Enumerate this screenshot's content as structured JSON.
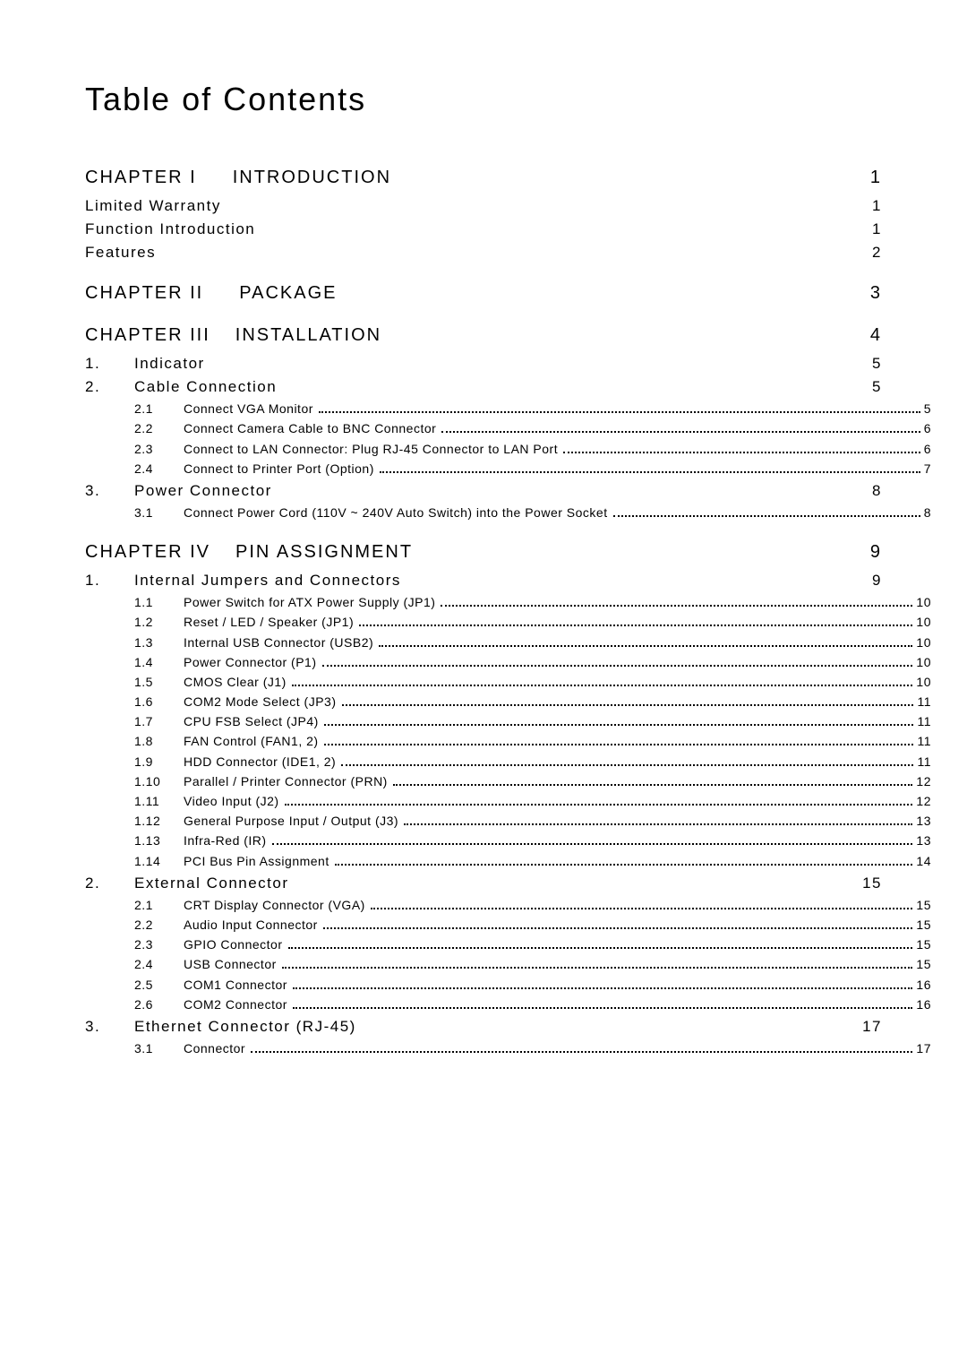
{
  "title": "Table of Contents",
  "toc": [
    {
      "kind": "chapter",
      "label": "CHAPTER I",
      "title": "INTRODUCTION",
      "page": "1",
      "wide": false
    },
    {
      "kind": "heading",
      "title": "Limited Warranty",
      "page": "1"
    },
    {
      "kind": "heading",
      "title": "Function Introduction",
      "page": "1"
    },
    {
      "kind": "heading",
      "title": "Features",
      "page": "2"
    },
    {
      "kind": "chapter",
      "label": "CHAPTER II",
      "title": "PACKAGE",
      "page": "3",
      "wide": false
    },
    {
      "kind": "chapter",
      "label": "CHAPTER III",
      "title": "INSTALLATION",
      "page": "4",
      "wide": true
    },
    {
      "kind": "section",
      "num": "1.",
      "title": "Indicator",
      "page": "5"
    },
    {
      "kind": "section",
      "num": "2.",
      "title": "Cable Connection",
      "page": "5"
    },
    {
      "kind": "sub",
      "num": "2.1",
      "title": "Connect VGA Monitor ",
      "page": " 5"
    },
    {
      "kind": "sub",
      "num": "2.2",
      "title": "Connect Camera Cable to BNC Connector ",
      "page": " 6"
    },
    {
      "kind": "sub",
      "num": "2.3",
      "title": "Connect to LAN Connector: Plug RJ-45 Connector to LAN Port",
      "page": " 6"
    },
    {
      "kind": "sub",
      "num": "2.4",
      "title": "Connect to Printer Port (Option) ",
      "page": " 7"
    },
    {
      "kind": "section",
      "num": "3.",
      "title": "Power Connector",
      "page": "8"
    },
    {
      "kind": "sub",
      "num": "3.1",
      "title": "Connect Power Cord (110V ~ 240V Auto Switch) into the Power Socket ",
      "page": " 8"
    },
    {
      "kind": "chapter",
      "label": "CHAPTER IV",
      "title": "PIN ASSIGNMENT",
      "page": "9",
      "wide": true
    },
    {
      "kind": "section",
      "num": "1.",
      "title": "Internal Jumpers and Connectors",
      "page": "9"
    },
    {
      "kind": "sub",
      "num": "1.1",
      "title": "Power Switch for ATX Power Supply (JP1) ",
      "page": "10"
    },
    {
      "kind": "sub",
      "num": "1.2",
      "title": "Reset / LED / Speaker (JP1) ",
      "page": "10"
    },
    {
      "kind": "sub",
      "num": "1.3",
      "title": "Internal USB Connector (USB2) ",
      "page": "10"
    },
    {
      "kind": "sub",
      "num": "1.4",
      "title": "Power Connector (P1)",
      "page": "10"
    },
    {
      "kind": "sub",
      "num": "1.5",
      "title": "CMOS Clear (J1) ",
      "page": "10"
    },
    {
      "kind": "sub",
      "num": "1.6",
      "title": "COM2 Mode Select (JP3) ",
      "page": "11"
    },
    {
      "kind": "sub",
      "num": "1.7",
      "title": "CPU FSB Select (JP4) ",
      "page": "11"
    },
    {
      "kind": "sub",
      "num": "1.8",
      "title": "FAN Control (FAN1, 2) ",
      "page": "11"
    },
    {
      "kind": "sub",
      "num": "1.9",
      "title": "HDD Connector (IDE1, 2)",
      "page": "11"
    },
    {
      "kind": "sub",
      "num": "1.10",
      "title": "Parallel / Printer Connector (PRN)",
      "page": "12"
    },
    {
      "kind": "sub",
      "num": "1.11",
      "title": "Video Input (J2) ",
      "page": "12"
    },
    {
      "kind": "sub",
      "num": "1.12",
      "title": "General Purpose Input / Output (J3) ",
      "page": "13"
    },
    {
      "kind": "sub",
      "num": "1.13",
      "title": "Infra-Red (IR) ",
      "page": "13"
    },
    {
      "kind": "sub",
      "num": "1.14",
      "title": "PCI Bus Pin Assignment ",
      "page": "14"
    },
    {
      "kind": "section",
      "num": "2.",
      "title": "External Connector",
      "page": "15"
    },
    {
      "kind": "sub",
      "num": "2.1",
      "title": "CRT Display Connector (VGA) ",
      "page": "15"
    },
    {
      "kind": "sub",
      "num": "2.2",
      "title": "Audio Input Connector",
      "page": "15"
    },
    {
      "kind": "sub",
      "num": "2.3",
      "title": "GPIO Connector",
      "page": "15"
    },
    {
      "kind": "sub",
      "num": "2.4",
      "title": "USB Connector ",
      "page": "15"
    },
    {
      "kind": "sub",
      "num": "2.5",
      "title": "COM1 Connector",
      "page": "16"
    },
    {
      "kind": "sub",
      "num": "2.6",
      "title": "COM2 Connector",
      "page": "16"
    },
    {
      "kind": "section",
      "num": "3.",
      "title": "Ethernet Connector (RJ-45)",
      "page": "17"
    },
    {
      "kind": "sub",
      "num": "3.1",
      "title": "Connector",
      "page": "17"
    }
  ]
}
